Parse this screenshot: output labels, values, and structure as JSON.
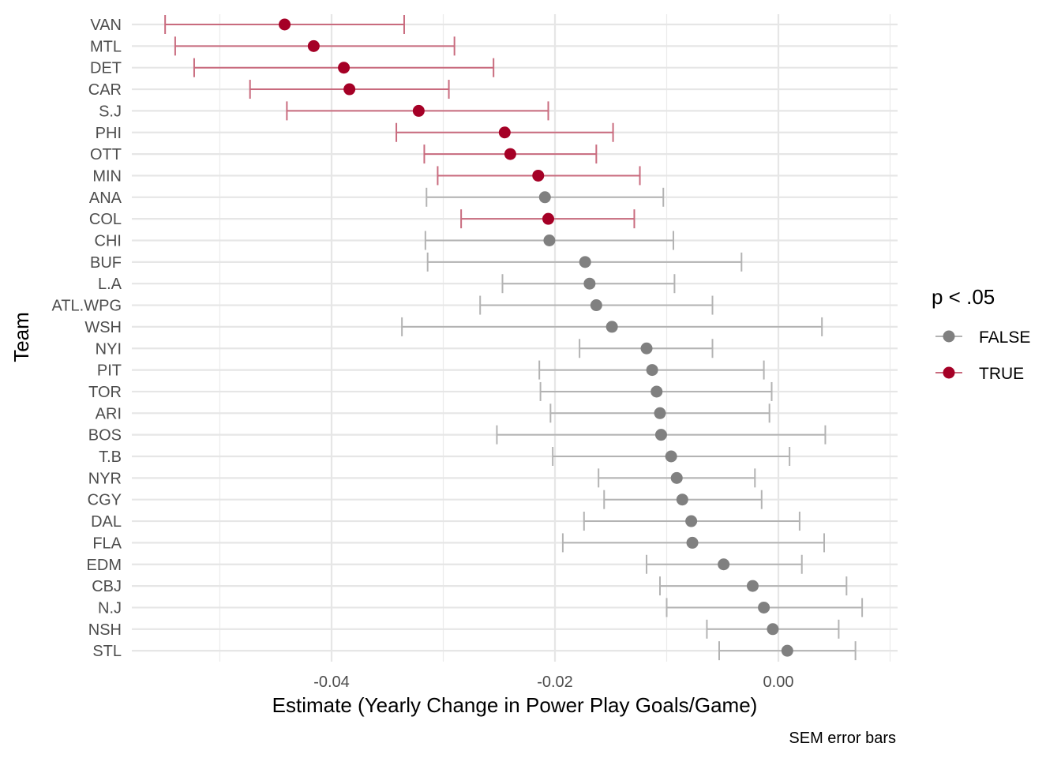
{
  "chart_data": {
    "type": "scatter",
    "xlabel": "Estimate (Yearly Change in Power Play Goals/Game)",
    "ylabel": "Team",
    "caption": "SEM error bars",
    "xlim": [
      -0.0575,
      0.0106
    ],
    "x_ticks": [
      -0.04,
      -0.02,
      0.0
    ],
    "x_tick_labels": [
      "-0.04",
      "-0.02",
      "0.00"
    ],
    "grid": true,
    "legend": {
      "title": "p < .05",
      "placement": "right",
      "entries": [
        {
          "label": "FALSE",
          "color": "#808080"
        },
        {
          "label": "TRUE",
          "color": "#a50026"
        }
      ]
    },
    "colors": {
      "FALSE_point": "#808080",
      "FALSE_bar": "#b3b3b3",
      "TRUE_point": "#a50026",
      "TRUE_bar": "#c96b7e"
    },
    "teams": [
      {
        "team": "VAN",
        "estimate": -0.0442,
        "low": -0.0549,
        "high": -0.0335,
        "significant": "TRUE"
      },
      {
        "team": "MTL",
        "estimate": -0.0416,
        "low": -0.054,
        "high": -0.029,
        "significant": "TRUE"
      },
      {
        "team": "DET",
        "estimate": -0.0389,
        "low": -0.0523,
        "high": -0.0255,
        "significant": "TRUE"
      },
      {
        "team": "CAR",
        "estimate": -0.0384,
        "low": -0.0473,
        "high": -0.0295,
        "significant": "TRUE"
      },
      {
        "team": "S.J",
        "estimate": -0.0322,
        "low": -0.044,
        "high": -0.0206,
        "significant": "TRUE"
      },
      {
        "team": "PHI",
        "estimate": -0.0245,
        "low": -0.0342,
        "high": -0.0148,
        "significant": "TRUE"
      },
      {
        "team": "OTT",
        "estimate": -0.024,
        "low": -0.0317,
        "high": -0.0163,
        "significant": "TRUE"
      },
      {
        "team": "MIN",
        "estimate": -0.0215,
        "low": -0.0305,
        "high": -0.0124,
        "significant": "TRUE"
      },
      {
        "team": "ANA",
        "estimate": -0.0209,
        "low": -0.0315,
        "high": -0.0103,
        "significant": "FALSE"
      },
      {
        "team": "COL",
        "estimate": -0.0206,
        "low": -0.0284,
        "high": -0.0129,
        "significant": "TRUE"
      },
      {
        "team": "CHI",
        "estimate": -0.0205,
        "low": -0.0316,
        "high": -0.0094,
        "significant": "FALSE"
      },
      {
        "team": "BUF",
        "estimate": -0.0173,
        "low": -0.0314,
        "high": -0.0033,
        "significant": "FALSE"
      },
      {
        "team": "L.A",
        "estimate": -0.0169,
        "low": -0.0247,
        "high": -0.0093,
        "significant": "FALSE"
      },
      {
        "team": "ATL.WPG",
        "estimate": -0.0163,
        "low": -0.0267,
        "high": -0.0059,
        "significant": "FALSE"
      },
      {
        "team": "WSH",
        "estimate": -0.0149,
        "low": -0.0337,
        "high": 0.0039,
        "significant": "FALSE"
      },
      {
        "team": "NYI",
        "estimate": -0.0118,
        "low": -0.0178,
        "high": -0.0059,
        "significant": "FALSE"
      },
      {
        "team": "PIT",
        "estimate": -0.0113,
        "low": -0.0214,
        "high": -0.0013,
        "significant": "FALSE"
      },
      {
        "team": "TOR",
        "estimate": -0.0109,
        "low": -0.0213,
        "high": -0.0006,
        "significant": "FALSE"
      },
      {
        "team": "ARI",
        "estimate": -0.0106,
        "low": -0.0204,
        "high": -0.0008,
        "significant": "FALSE"
      },
      {
        "team": "BOS",
        "estimate": -0.0105,
        "low": -0.0252,
        "high": 0.0042,
        "significant": "FALSE"
      },
      {
        "team": "T.B",
        "estimate": -0.0096,
        "low": -0.0202,
        "high": 0.001,
        "significant": "FALSE"
      },
      {
        "team": "NYR",
        "estimate": -0.0091,
        "low": -0.0161,
        "high": -0.0021,
        "significant": "FALSE"
      },
      {
        "team": "CGY",
        "estimate": -0.0086,
        "low": -0.0156,
        "high": -0.0015,
        "significant": "FALSE"
      },
      {
        "team": "DAL",
        "estimate": -0.0078,
        "low": -0.0174,
        "high": 0.0019,
        "significant": "FALSE"
      },
      {
        "team": "FLA",
        "estimate": -0.0077,
        "low": -0.0193,
        "high": 0.0041,
        "significant": "FALSE"
      },
      {
        "team": "EDM",
        "estimate": -0.0049,
        "low": -0.0118,
        "high": 0.0021,
        "significant": "FALSE"
      },
      {
        "team": "CBJ",
        "estimate": -0.0023,
        "low": -0.0106,
        "high": 0.0061,
        "significant": "FALSE"
      },
      {
        "team": "N.J",
        "estimate": -0.0013,
        "low": -0.01,
        "high": 0.0075,
        "significant": "FALSE"
      },
      {
        "team": "NSH",
        "estimate": -0.0005,
        "low": -0.0064,
        "high": 0.0054,
        "significant": "FALSE"
      },
      {
        "team": "STL",
        "estimate": 0.0008,
        "low": -0.0053,
        "high": 0.0069,
        "significant": "FALSE"
      }
    ]
  }
}
